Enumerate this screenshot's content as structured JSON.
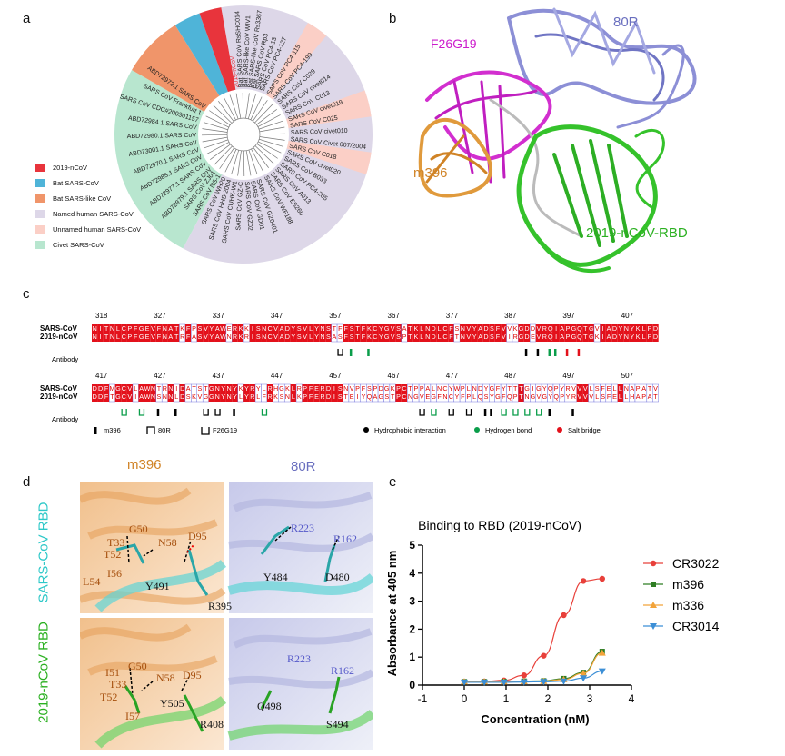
{
  "panels": {
    "a": "a",
    "b": "b",
    "c": "c",
    "d": "d",
    "e": "e"
  },
  "panel_a": {
    "legend": [
      {
        "label": "2019-nCoV",
        "color": "#e8343c"
      },
      {
        "label": "Bat SARS-CoV",
        "color": "#4fb4d8"
      },
      {
        "label": "Bat SARS-like CoV",
        "color": "#f0956a"
      },
      {
        "label": "Named human SARS-CoV",
        "color": "#ddd7e8"
      },
      {
        "label": "Unnamed human SARS-CoV",
        "color": "#fbcfc6"
      },
      {
        "label": "Civet SARS-CoV",
        "color": "#b8e6cf"
      }
    ],
    "leaves_right": [
      "SARS CoV PC4-115",
      "SARS CoV PC4-199",
      "SARS CoV C029",
      "SARS CoV civet014",
      "SARS CoV C013",
      "SARS CoV civet019",
      "SARS CoV C025",
      "SARS CoV civet010",
      "SARS CoV Civet 007/2004",
      "SARS CoV C018",
      "SARS CoV civet020",
      "SARS CoV B033",
      "SARS CoV PC4-205",
      "SARS CoV A013",
      "SARS CoV ES260",
      "SARS CoV WF188"
    ],
    "leaves_bottom": [
      "SARS CoV GZ0401",
      "SARS CoV GD01",
      "SARS CoV GZ02",
      "SARS CoV GZ-C",
      "SARS CoV CUHK-W1",
      "SARS CoV HHS-2004",
      "SARS CoV WH20",
      "SARS CoV NS-1",
      "SARS CoV ZJ01"
    ],
    "leaves_left": [
      "ABD72979.1 SARS CoV",
      "ABD72977.1 SARS CoV",
      "ABD72985.1 SARS CoV",
      "ABD72970.1 SARS CoV",
      "ABD73001.1 SARS CoV",
      "ABD72980.1 SARS CoV",
      "ABD72984.1 SARS CoV",
      "SARS CoV CDC#200301157",
      "SARS CoV Frankfurt 1",
      "ABD72972.1 SARS CoV"
    ],
    "leaves_top": [
      "2019-nCoV",
      "Bat SARS CoV RsSHC014",
      "Bat SARS-like CoV WIV1",
      "Bat SARS-like CoV Rs3367",
      "Bat SARS CoV Rp3",
      "SARS CoV PC4-13",
      "SARS CoV PC4-127"
    ]
  },
  "panel_b": {
    "labels": {
      "ab80r": "80R",
      "f26g19": "F26G19",
      "m396": "m396",
      "rbd": "2019-nCoV-RBD"
    }
  },
  "panel_c": {
    "names": {
      "sars": "SARS-CoV",
      "ncov": "2019-nCoV",
      "antibody": "Antibody"
    },
    "ruler1": [
      "318",
      "327",
      "337",
      "347",
      "357",
      "367",
      "377",
      "387",
      "397",
      "407"
    ],
    "seq1_sars": "NITNLCPFGEVFNATKFPSVYAWERKKISNCVADYSVLYNSTFFSTFKCYGVSATKLNDLCFSNVYADSFVVKGDDVRQIAPGQTGVIADYNYKLPD",
    "seq1_ncov": "NITNLCPFGEVFNATRFASVYAWNRKRISNCVADYSVLYNSASFSTFKCYGVSPTKLNDLCFTNVYADSFVIRGDEVRQIAPGQTGKIADYNYKLPD",
    "ruler2": [
      "417",
      "427",
      "437",
      "447",
      "457",
      "467",
      "477",
      "487",
      "497",
      "507"
    ],
    "seq2_sars": "DDFMGCVLAWNTRNIDATSTGNYNYKYRYLRHGKLRPFERDISNVPFSPDGKPCTPPALNCYWPLNDYGFYTTTGIGYQPYRVVVLSFELLNAPATV",
    "seq2_ncov": "DDFTGCVIAWNSNNLDSKVGGNYNYLYRLFRKSNLKPFERDISTEIYQAGSTPCNGVEGFNCYFPLQSYGFQPTNGVGYQPYRVVVLSFELLHAPATV",
    "legend": {
      "m396": "m396",
      "r80": "80R",
      "f26": "F26G19",
      "hydro": "Hydrophobic interaction",
      "hbond": "Hydrogen bond",
      "salt": "Salt bridge"
    }
  },
  "panel_d": {
    "col_m396": "m396",
    "col_80r": "80R",
    "row_sars": "SARS-CoV RBD",
    "row_ncov": "2019-nCoV RBD",
    "tl": {
      "g50": "G50",
      "t33": "T33",
      "n58": "N58",
      "d95": "D95",
      "t52": "T52",
      "i56": "I56",
      "l54": "L54",
      "y491": "Y491",
      "r395": "R395"
    },
    "tr": {
      "r223": "R223",
      "r162": "R162",
      "y484": "Y484",
      "d480": "D480"
    },
    "bl": {
      "g50": "G50",
      "i51": "I51",
      "t33": "T33",
      "n58": "N58",
      "d95": "D95",
      "t52": "T52",
      "i57": "I57",
      "y505": "Y505",
      "r408": "R408"
    },
    "br": {
      "r223": "R223",
      "r162": "R162",
      "q498": "Q498",
      "s494": "S494"
    }
  },
  "chart_data": {
    "type": "scatter",
    "title": "Binding to RBD (2019-nCoV)",
    "xlabel": "Concentration (nM)",
    "ylabel": "Absorbance at 405 nm",
    "xlim": [
      -1,
      4
    ],
    "ylim": [
      0,
      5
    ],
    "xticks": [
      "-1",
      "0",
      "1",
      "2",
      "3",
      "4"
    ],
    "yticks": [
      "0",
      "1",
      "2",
      "3",
      "4",
      "5"
    ],
    "legend_position": "right",
    "x": [
      0.0,
      0.48,
      0.95,
      1.43,
      1.9,
      2.38,
      2.85,
      3.3
    ],
    "series": [
      {
        "name": "CR3022",
        "color": "#e8403a",
        "marker": "circle",
        "values": [
          0.12,
          0.13,
          0.17,
          0.35,
          1.05,
          2.5,
          3.72,
          3.8
        ]
      },
      {
        "name": "m396",
        "color": "#2e7d23",
        "marker": "square",
        "values": [
          0.12,
          0.12,
          0.13,
          0.14,
          0.15,
          0.23,
          0.45,
          1.2
        ]
      },
      {
        "name": "m336",
        "color": "#f2a33a",
        "marker": "triangle-up",
        "values": [
          0.12,
          0.12,
          0.12,
          0.13,
          0.14,
          0.2,
          0.42,
          1.15
        ]
      },
      {
        "name": "CR3014",
        "color": "#3c8fd6",
        "marker": "triangle-down",
        "values": [
          0.1,
          0.1,
          0.1,
          0.11,
          0.12,
          0.14,
          0.25,
          0.5
        ]
      }
    ]
  }
}
